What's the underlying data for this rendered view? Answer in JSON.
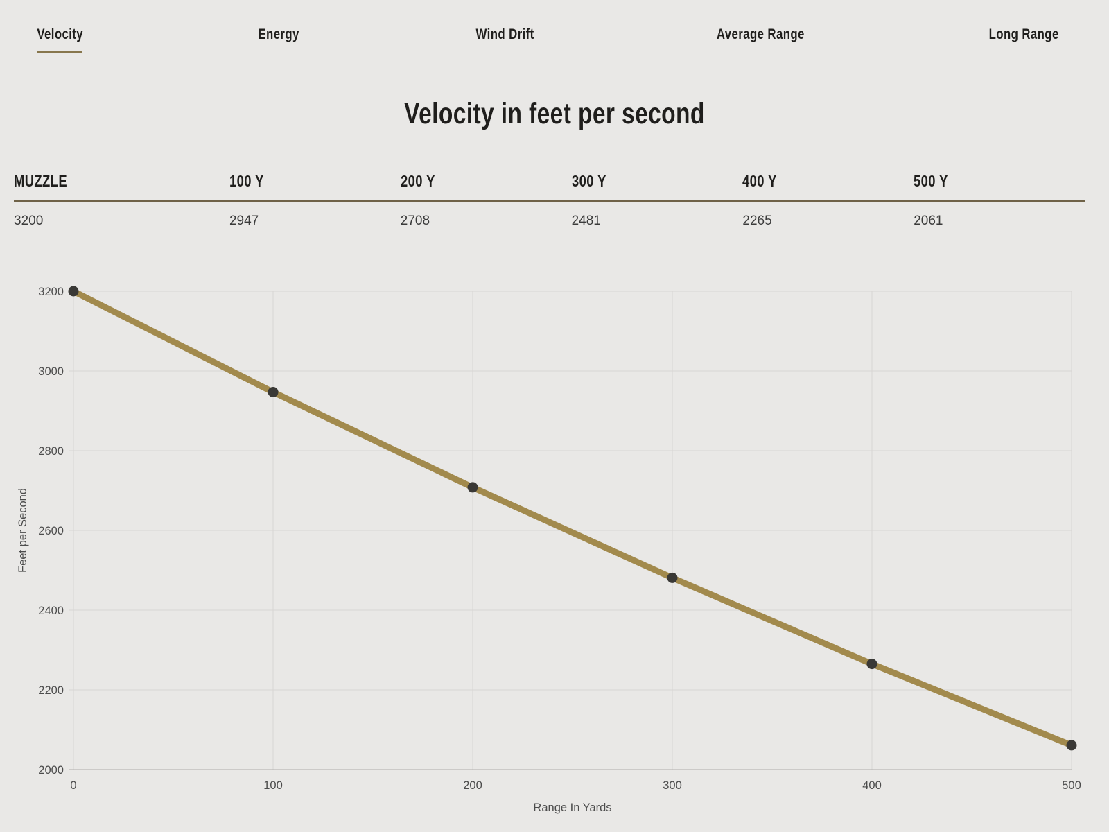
{
  "colors": {
    "background": "#e9e8e6",
    "ink": "#1f1e1c",
    "accent_olive": "#6f6248",
    "tab_underline": "#87764d"
  },
  "tabs": {
    "items": [
      {
        "label": "Velocity",
        "active": true
      },
      {
        "label": "Energy",
        "active": false
      },
      {
        "label": "Wind Drift",
        "active": false
      },
      {
        "label": "Average Range",
        "active": false
      },
      {
        "label": "Long Range",
        "active": false
      }
    ]
  },
  "page": {
    "title": "Velocity in feet per second"
  },
  "table": {
    "headers": [
      "MUZZLE",
      "100 Y",
      "200 Y",
      "300 Y",
      "400 Y",
      "500 Y"
    ],
    "values": [
      "3200",
      "2947",
      "2708",
      "2481",
      "2265",
      "2061"
    ]
  },
  "chart_data": {
    "type": "line",
    "title": "Velocity in feet per second",
    "x": [
      0,
      100,
      200,
      300,
      400,
      500
    ],
    "series": [
      {
        "name": "Velocity",
        "values": [
          3200,
          2947,
          2708,
          2481,
          2265,
          2061
        ]
      }
    ],
    "xlabel": "Range In Yards",
    "ylabel": "Feet per Second",
    "xlim": [
      0,
      500
    ],
    "ylim": [
      2000,
      3200
    ],
    "x_ticks": [
      0,
      100,
      200,
      300,
      400,
      500
    ],
    "y_ticks": [
      2000,
      2200,
      2400,
      2600,
      2800,
      3000,
      3200
    ],
    "grid": true,
    "legend": "none",
    "line_color": "#a28a4d",
    "marker_color": "#3a3936",
    "grid_color": "#d7d6d4",
    "axis_color": "#aeadab",
    "tick_color": "#4c4c4c"
  }
}
